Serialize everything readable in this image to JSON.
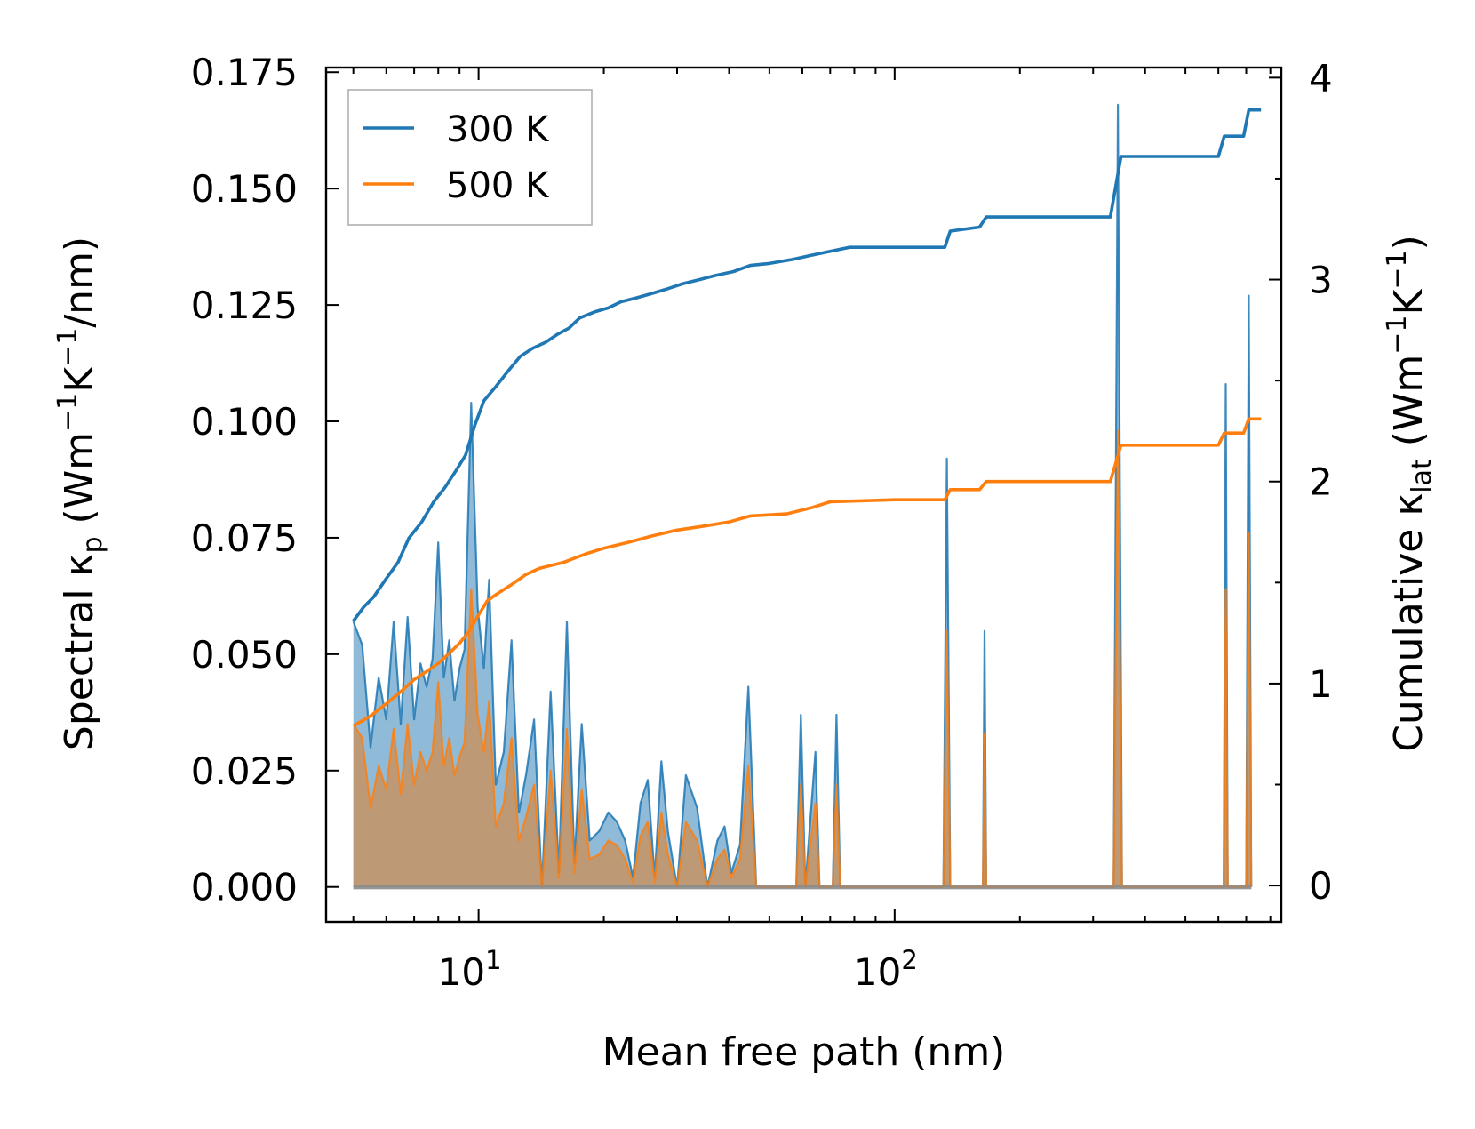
{
  "chart_data": {
    "type": "line",
    "xscale": "log",
    "xlim": [
      4.3,
      850
    ],
    "xlabel": "Mean free path (nm)",
    "xticks": [
      {
        "value": 10,
        "base": "10",
        "exp": "1"
      },
      {
        "value": 100,
        "base": "10",
        "exp": "2"
      }
    ],
    "left_axis": {
      "ylim": [
        -0.0075,
        0.176
      ],
      "ylabel": {
        "pre": "Spectral κ",
        "sub": "p",
        "mid1": " (Wm",
        "sup1": "−1",
        "mid2": "K",
        "sup2": "−1",
        "post": "/nm)"
      },
      "ticks": [
        {
          "value": 0.0,
          "label": "0.000"
        },
        {
          "value": 0.025,
          "label": "0.025"
        },
        {
          "value": 0.05,
          "label": "0.050"
        },
        {
          "value": 0.075,
          "label": "0.075"
        },
        {
          "value": 0.1,
          "label": "0.100"
        },
        {
          "value": 0.125,
          "label": "0.125"
        },
        {
          "value": 0.15,
          "label": "0.150"
        },
        {
          "value": 0.175,
          "label": "0.175"
        }
      ]
    },
    "right_axis": {
      "ylim": [
        -0.18,
        4.05
      ],
      "ylabel": {
        "pre": "Cumulative κ",
        "sub": "lat",
        "mid1": " (Wm",
        "sup1": "−1",
        "mid2": "K",
        "sup2": "−1",
        "post": ")"
      },
      "ticks": [
        {
          "value": 0,
          "label": "0"
        },
        {
          "value": 1,
          "label": "1"
        },
        {
          "value": 2,
          "label": "2"
        },
        {
          "value": 3,
          "label": "3"
        },
        {
          "value": 4,
          "label": "4"
        }
      ]
    },
    "legend": {
      "position": "top-left"
    },
    "colors": {
      "300K": "#1f77b4",
      "500K": "#ff7f0e",
      "fill300": "#1f77b4",
      "fill500": "#d08a4a"
    },
    "series": [
      {
        "name": "300 K",
        "axis": "right",
        "kind": "cumulative",
        "color": "#1f77b4",
        "points": [
          [
            5.0,
            1.31
          ],
          [
            5.3,
            1.38
          ],
          [
            5.6,
            1.43
          ],
          [
            6.0,
            1.52
          ],
          [
            6.4,
            1.6
          ],
          [
            6.8,
            1.72
          ],
          [
            7.3,
            1.8
          ],
          [
            7.8,
            1.9
          ],
          [
            8.3,
            1.97
          ],
          [
            8.8,
            2.05
          ],
          [
            9.3,
            2.13
          ],
          [
            9.8,
            2.28
          ],
          [
            10.3,
            2.4
          ],
          [
            11.0,
            2.47
          ],
          [
            11.8,
            2.55
          ],
          [
            12.6,
            2.62
          ],
          [
            13.5,
            2.66
          ],
          [
            14.5,
            2.69
          ],
          [
            15.5,
            2.73
          ],
          [
            16.5,
            2.76
          ],
          [
            17.5,
            2.81
          ],
          [
            19.0,
            2.84
          ],
          [
            20.5,
            2.86
          ],
          [
            22.0,
            2.89
          ],
          [
            24.0,
            2.91
          ],
          [
            26.0,
            2.93
          ],
          [
            28.0,
            2.95
          ],
          [
            31.0,
            2.98
          ],
          [
            34.0,
            3.0
          ],
          [
            37.0,
            3.02
          ],
          [
            41.0,
            3.04
          ],
          [
            45.0,
            3.07
          ],
          [
            50.0,
            3.08
          ],
          [
            57.0,
            3.1
          ],
          [
            63.0,
            3.12
          ],
          [
            70.0,
            3.14
          ],
          [
            78.0,
            3.16
          ],
          [
            100.0,
            3.16
          ],
          [
            132.0,
            3.16
          ],
          [
            136.0,
            3.24
          ],
          [
            160.0,
            3.26
          ],
          [
            166.0,
            3.31
          ],
          [
            250.0,
            3.31
          ],
          [
            330.0,
            3.31
          ],
          [
            350.0,
            3.61
          ],
          [
            600.0,
            3.61
          ],
          [
            620.0,
            3.71
          ],
          [
            690.0,
            3.71
          ],
          [
            710.0,
            3.84
          ],
          [
            760.0,
            3.84
          ]
        ]
      },
      {
        "name": "500 K",
        "axis": "right",
        "kind": "cumulative",
        "color": "#ff7f0e",
        "points": [
          [
            5.0,
            0.79
          ],
          [
            5.5,
            0.84
          ],
          [
            6.0,
            0.9
          ],
          [
            6.5,
            0.96
          ],
          [
            7.0,
            1.02
          ],
          [
            7.5,
            1.06
          ],
          [
            8.0,
            1.1
          ],
          [
            8.5,
            1.15
          ],
          [
            9.0,
            1.2
          ],
          [
            9.5,
            1.26
          ],
          [
            10.0,
            1.34
          ],
          [
            10.5,
            1.41
          ],
          [
            11.0,
            1.44
          ],
          [
            12.0,
            1.49
          ],
          [
            13.0,
            1.54
          ],
          [
            14.0,
            1.57
          ],
          [
            16.0,
            1.6
          ],
          [
            18.0,
            1.64
          ],
          [
            20.0,
            1.67
          ],
          [
            23.0,
            1.7
          ],
          [
            26.0,
            1.73
          ],
          [
            30.0,
            1.76
          ],
          [
            35.0,
            1.78
          ],
          [
            40.0,
            1.8
          ],
          [
            45.0,
            1.83
          ],
          [
            55.0,
            1.84
          ],
          [
            63.0,
            1.87
          ],
          [
            70.0,
            1.9
          ],
          [
            100.0,
            1.91
          ],
          [
            132.0,
            1.91
          ],
          [
            136.0,
            1.96
          ],
          [
            160.0,
            1.96
          ],
          [
            166.0,
            2.0
          ],
          [
            250.0,
            2.0
          ],
          [
            330.0,
            2.0
          ],
          [
            350.0,
            2.18
          ],
          [
            600.0,
            2.18
          ],
          [
            620.0,
            2.24
          ],
          [
            690.0,
            2.24
          ],
          [
            710.0,
            2.31
          ],
          [
            760.0,
            2.31
          ]
        ]
      },
      {
        "name": "300 K spectral",
        "axis": "left",
        "kind": "spectral",
        "color": "#1f77b4",
        "points": [
          [
            5.0,
            0.057
          ],
          [
            5.25,
            0.052
          ],
          [
            5.5,
            0.03
          ],
          [
            5.75,
            0.045
          ],
          [
            6.0,
            0.036
          ],
          [
            6.25,
            0.057
          ],
          [
            6.5,
            0.035
          ],
          [
            6.75,
            0.058
          ],
          [
            7.0,
            0.036
          ],
          [
            7.25,
            0.048
          ],
          [
            7.5,
            0.043
          ],
          [
            7.75,
            0.049
          ],
          [
            8.0,
            0.074
          ],
          [
            8.25,
            0.045
          ],
          [
            8.5,
            0.053
          ],
          [
            8.75,
            0.04
          ],
          [
            9.0,
            0.047
          ],
          [
            9.25,
            0.051
          ],
          [
            9.6,
            0.104
          ],
          [
            9.95,
            0.06
          ],
          [
            10.3,
            0.047
          ],
          [
            10.6,
            0.066
          ],
          [
            11.0,
            0.022
          ],
          [
            11.5,
            0.029
          ],
          [
            12.0,
            0.053
          ],
          [
            12.5,
            0.016
          ],
          [
            13.0,
            0.024
          ],
          [
            13.6,
            0.036
          ],
          [
            14.2,
            0.0
          ],
          [
            14.9,
            0.042
          ],
          [
            15.6,
            0.003
          ],
          [
            16.3,
            0.057
          ],
          [
            17.0,
            0.005
          ],
          [
            17.7,
            0.035
          ],
          [
            18.5,
            0.01
          ],
          [
            19.5,
            0.012
          ],
          [
            20.5,
            0.016
          ],
          [
            21.5,
            0.014
          ],
          [
            22.5,
            0.01
          ],
          [
            23.5,
            0.002
          ],
          [
            24.5,
            0.018
          ],
          [
            25.5,
            0.023
          ],
          [
            26.5,
            0.002
          ],
          [
            27.5,
            0.027
          ],
          [
            28.5,
            0.012
          ],
          [
            30.0,
            0.0
          ],
          [
            31.5,
            0.024
          ],
          [
            33.5,
            0.017
          ],
          [
            35.5,
            0.0
          ],
          [
            37.5,
            0.01
          ],
          [
            39.0,
            0.013
          ],
          [
            40.5,
            0.003
          ],
          [
            42.5,
            0.009
          ],
          [
            44.5,
            0.043
          ],
          [
            46.5,
            0.0
          ],
          [
            58.0,
            0.0
          ],
          [
            59.5,
            0.037
          ],
          [
            61.0,
            0.0
          ],
          [
            64.5,
            0.029
          ],
          [
            66.0,
            0.0
          ],
          [
            71.0,
            0.0
          ],
          [
            72.5,
            0.037
          ],
          [
            74.0,
            0.0
          ],
          [
            131.0,
            0.0
          ],
          [
            133.5,
            0.092
          ],
          [
            136.0,
            0.0
          ],
          [
            163.0,
            0.0
          ],
          [
            164.5,
            0.055
          ],
          [
            166.0,
            0.0
          ],
          [
            336.0,
            0.0
          ],
          [
            344.0,
            0.168
          ],
          [
            352.0,
            0.0
          ],
          [
            618.0,
            0.0
          ],
          [
            625.0,
            0.108
          ],
          [
            632.0,
            0.0
          ],
          [
            700.0,
            0.0
          ],
          [
            710.0,
            0.127
          ],
          [
            720.0,
            0.0
          ]
        ]
      },
      {
        "name": "500 K spectral",
        "axis": "left",
        "kind": "spectral",
        "color": "#ff7f0e",
        "points": [
          [
            5.0,
            0.035
          ],
          [
            5.25,
            0.032
          ],
          [
            5.5,
            0.017
          ],
          [
            5.75,
            0.026
          ],
          [
            6.0,
            0.021
          ],
          [
            6.25,
            0.034
          ],
          [
            6.5,
            0.02
          ],
          [
            6.75,
            0.035
          ],
          [
            7.0,
            0.022
          ],
          [
            7.25,
            0.029
          ],
          [
            7.5,
            0.025
          ],
          [
            7.75,
            0.029
          ],
          [
            8.0,
            0.044
          ],
          [
            8.25,
            0.026
          ],
          [
            8.5,
            0.032
          ],
          [
            8.75,
            0.024
          ],
          [
            9.0,
            0.028
          ],
          [
            9.25,
            0.031
          ],
          [
            9.6,
            0.064
          ],
          [
            9.95,
            0.037
          ],
          [
            10.3,
            0.029
          ],
          [
            10.6,
            0.04
          ],
          [
            11.0,
            0.013
          ],
          [
            11.5,
            0.018
          ],
          [
            12.0,
            0.032
          ],
          [
            12.5,
            0.01
          ],
          [
            13.0,
            0.015
          ],
          [
            13.6,
            0.022
          ],
          [
            14.2,
            0.0
          ],
          [
            14.9,
            0.025
          ],
          [
            15.6,
            0.002
          ],
          [
            16.3,
            0.034
          ],
          [
            17.0,
            0.003
          ],
          [
            17.7,
            0.021
          ],
          [
            18.5,
            0.006
          ],
          [
            19.5,
            0.007
          ],
          [
            20.5,
            0.01
          ],
          [
            21.5,
            0.009
          ],
          [
            22.5,
            0.006
          ],
          [
            23.5,
            0.001
          ],
          [
            24.5,
            0.011
          ],
          [
            25.5,
            0.014
          ],
          [
            26.5,
            0.001
          ],
          [
            27.5,
            0.016
          ],
          [
            28.5,
            0.007
          ],
          [
            30.0,
            0.0
          ],
          [
            31.5,
            0.014
          ],
          [
            33.5,
            0.01
          ],
          [
            35.5,
            0.0
          ],
          [
            37.5,
            0.006
          ],
          [
            39.0,
            0.008
          ],
          [
            40.5,
            0.002
          ],
          [
            42.5,
            0.006
          ],
          [
            44.5,
            0.026
          ],
          [
            46.5,
            0.0
          ],
          [
            58.0,
            0.0
          ],
          [
            59.5,
            0.022
          ],
          [
            61.0,
            0.0
          ],
          [
            64.5,
            0.018
          ],
          [
            66.0,
            0.0
          ],
          [
            71.0,
            0.0
          ],
          [
            72.5,
            0.022
          ],
          [
            74.0,
            0.0
          ],
          [
            131.0,
            0.0
          ],
          [
            133.5,
            0.055
          ],
          [
            136.0,
            0.0
          ],
          [
            163.0,
            0.0
          ],
          [
            164.5,
            0.033
          ],
          [
            166.0,
            0.0
          ],
          [
            336.0,
            0.0
          ],
          [
            344.0,
            0.098
          ],
          [
            352.0,
            0.0
          ],
          [
            618.0,
            0.0
          ],
          [
            625.0,
            0.064
          ],
          [
            632.0,
            0.0
          ],
          [
            700.0,
            0.0
          ],
          [
            710.0,
            0.076
          ],
          [
            720.0,
            0.0
          ]
        ]
      }
    ]
  }
}
